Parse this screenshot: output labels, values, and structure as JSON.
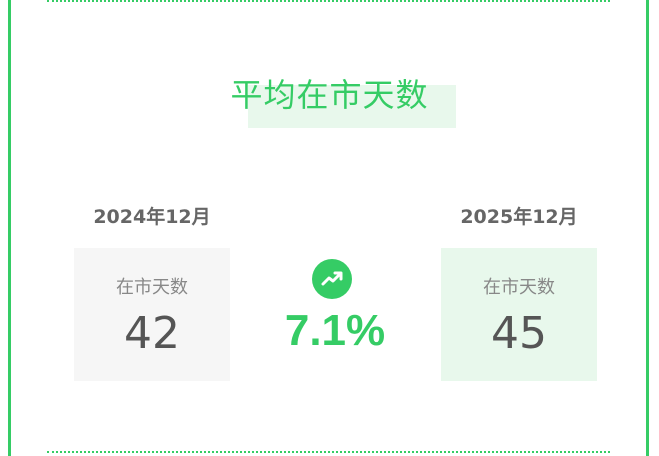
{
  "title": "平均在市天数",
  "left": {
    "period": "2024年12月",
    "label": "在市天数",
    "value": "42"
  },
  "right": {
    "period": "2025年12月",
    "label": "在市天数",
    "value": "45"
  },
  "change": {
    "icon": "trending-up-icon",
    "value": "7.1%"
  },
  "colors": {
    "accent": "#35cc65",
    "highlight": "#e8f8ec",
    "box_neutral": "#f6f6f6"
  }
}
